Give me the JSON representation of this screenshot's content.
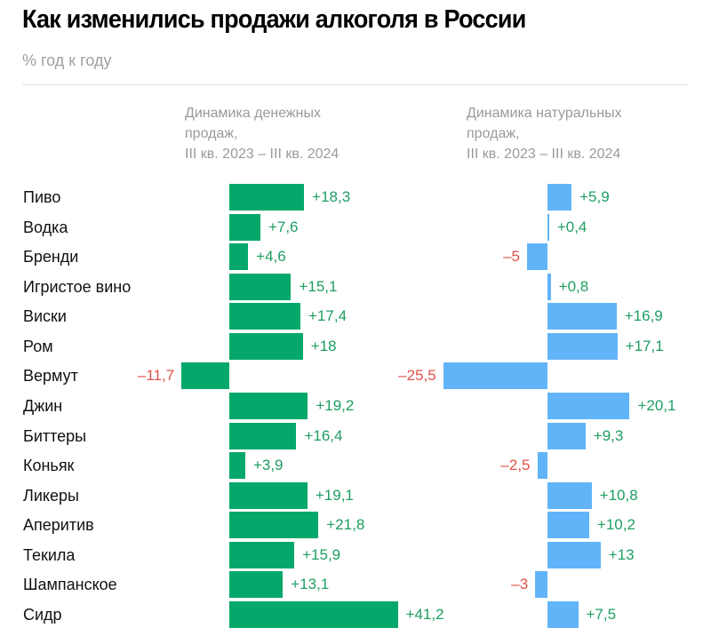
{
  "chart_data": {
    "type": "bar",
    "title": "Как изменились продажи алкоголя в России",
    "subtitle": "% год к году",
    "categories": [
      "Пиво",
      "Водка",
      "Бренди",
      "Игристое вино",
      "Виски",
      "Ром",
      "Вермут",
      "Джин",
      "Биттеры",
      "Коньяк",
      "Ликеры",
      "Аперитив",
      "Текила",
      "Шампанское",
      "Сидр"
    ],
    "series": [
      {
        "name": "Динамика денежных\nпродаж,\nIII кв. 2023 – III кв. 2024",
        "color": "#03a86a",
        "values": [
          18.3,
          7.6,
          4.6,
          15.1,
          17.4,
          18,
          -11.7,
          19.2,
          16.4,
          3.9,
          19.1,
          21.8,
          15.9,
          13.1,
          41.2
        ],
        "labels": [
          "+18,3",
          "+7,6",
          "+4,6",
          "+15,1",
          "+17,4",
          "+18",
          "–11,7",
          "+19,2",
          "+16,4",
          "+3,9",
          "+19,1",
          "+21,8",
          "+15,9",
          "+13,1",
          "+41,2"
        ]
      },
      {
        "name": "Динамика натуральных\nпродаж,\nIII кв. 2023 – III кв. 2024",
        "color": "#62b4f8",
        "values": [
          5.9,
          0.4,
          -5,
          0.8,
          16.9,
          17.1,
          -25.5,
          20.1,
          9.3,
          -2.5,
          10.8,
          10.2,
          13,
          -3,
          7.5
        ],
        "labels": [
          "+5,9",
          "+0,4",
          "–5",
          "+0,8",
          "+16,9",
          "+17,1",
          "–25,5",
          "+20,1",
          "+9,3",
          "–2,5",
          "+10,8",
          "+10,2",
          "+13",
          "–3",
          "+7,5"
        ]
      }
    ],
    "positive_label_color": "#1e9e62",
    "negative_label_color": "#e0524a"
  }
}
